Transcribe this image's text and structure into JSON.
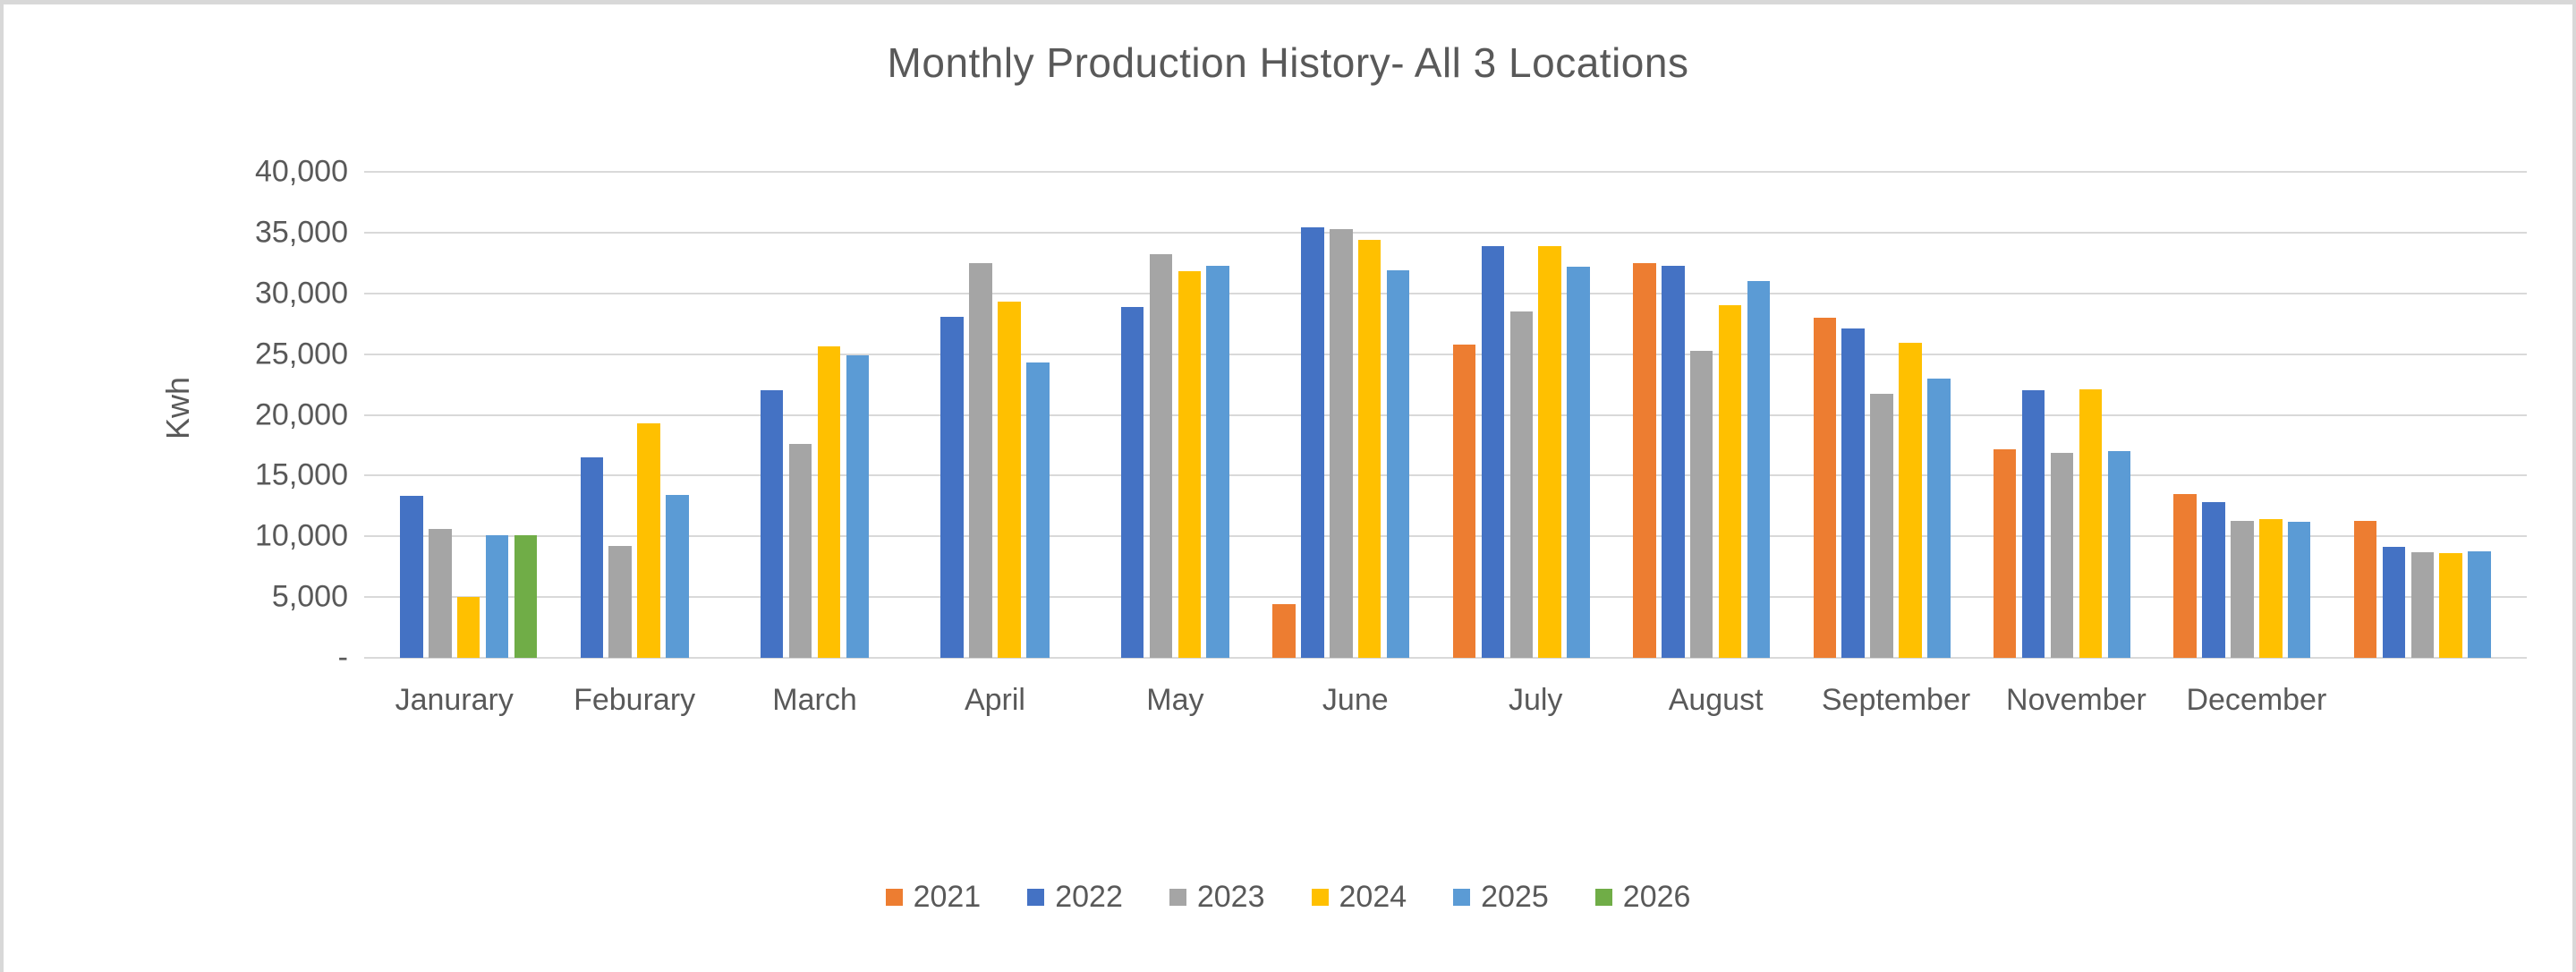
{
  "chart_data": {
    "type": "bar",
    "title": "Monthly Production History- All 3 Locations",
    "xlabel": "",
    "ylabel": "Kwh",
    "ylim": [
      0,
      40000
    ],
    "ytick_step": 5000,
    "y_tick_labels": [
      "-",
      "5,000",
      "10,000",
      "15,000",
      "20,000",
      "25,000",
      "30,000",
      "35,000",
      "40,000"
    ],
    "grid": true,
    "legend_position": "bottom",
    "categories": [
      "Janurary",
      "Feburary",
      "March",
      "April",
      "May",
      "June",
      "July",
      "August",
      "September",
      "November",
      "December",
      ""
    ],
    "series": [
      {
        "name": "2021",
        "color": "#ED7D31",
        "values": [
          null,
          null,
          null,
          null,
          null,
          4400,
          25800,
          32500,
          28000,
          17200,
          13500,
          11300
        ]
      },
      {
        "name": "2022",
        "color": "#4472C4",
        "values": [
          13300,
          16500,
          22000,
          28100,
          28900,
          35400,
          33900,
          32300,
          27100,
          22000,
          12800,
          9100
        ]
      },
      {
        "name": "2023",
        "color": "#A5A5A5",
        "values": [
          10600,
          9200,
          17600,
          32500,
          33200,
          35300,
          28500,
          25300,
          21700,
          16900,
          11300,
          8700
        ]
      },
      {
        "name": "2024",
        "color": "#FFC000",
        "values": [
          5000,
          19300,
          25600,
          29300,
          31800,
          34400,
          33900,
          29000,
          25900,
          22100,
          11400,
          8600
        ]
      },
      {
        "name": "2025",
        "color": "#5B9BD5",
        "values": [
          10100,
          13400,
          24900,
          24300,
          32300,
          31900,
          32200,
          31000,
          23000,
          17000,
          11200,
          8800
        ]
      },
      {
        "name": "2026",
        "color": "#70AD47",
        "values": [
          10100,
          null,
          null,
          null,
          null,
          null,
          null,
          null,
          null,
          null,
          null,
          null
        ]
      }
    ],
    "gridline_color": "#D9D9D9",
    "text_color": "#595959"
  }
}
